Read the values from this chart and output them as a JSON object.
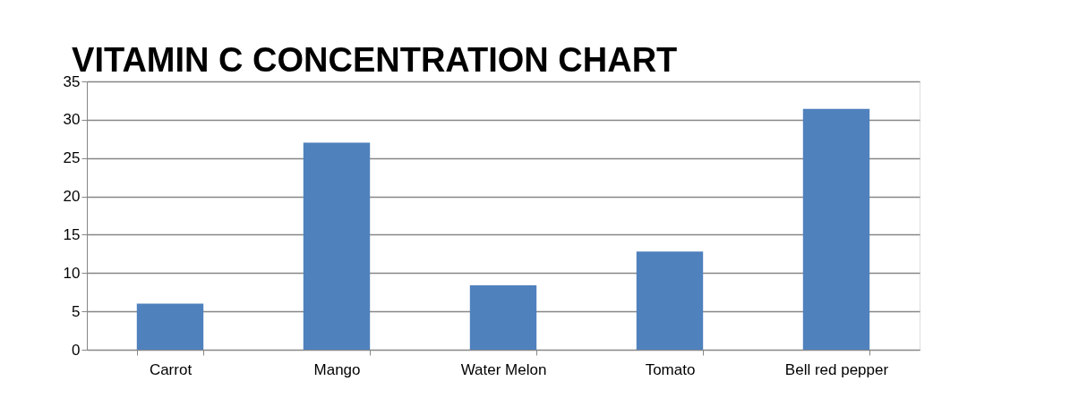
{
  "chart_data": {
    "type": "bar",
    "title": "VITAMIN C CONCENTRATION CHART",
    "categories": [
      "Carrot",
      "Mango",
      "Water Melon",
      "Tomato",
      "Bell red pepper"
    ],
    "values": [
      6,
      27,
      8.4,
      12.8,
      31.4
    ],
    "color": "#4f81bd",
    "ylim": [
      0,
      35
    ],
    "yticks": [
      0,
      5,
      10,
      15,
      20,
      25,
      30,
      35
    ],
    "grid": "y"
  }
}
